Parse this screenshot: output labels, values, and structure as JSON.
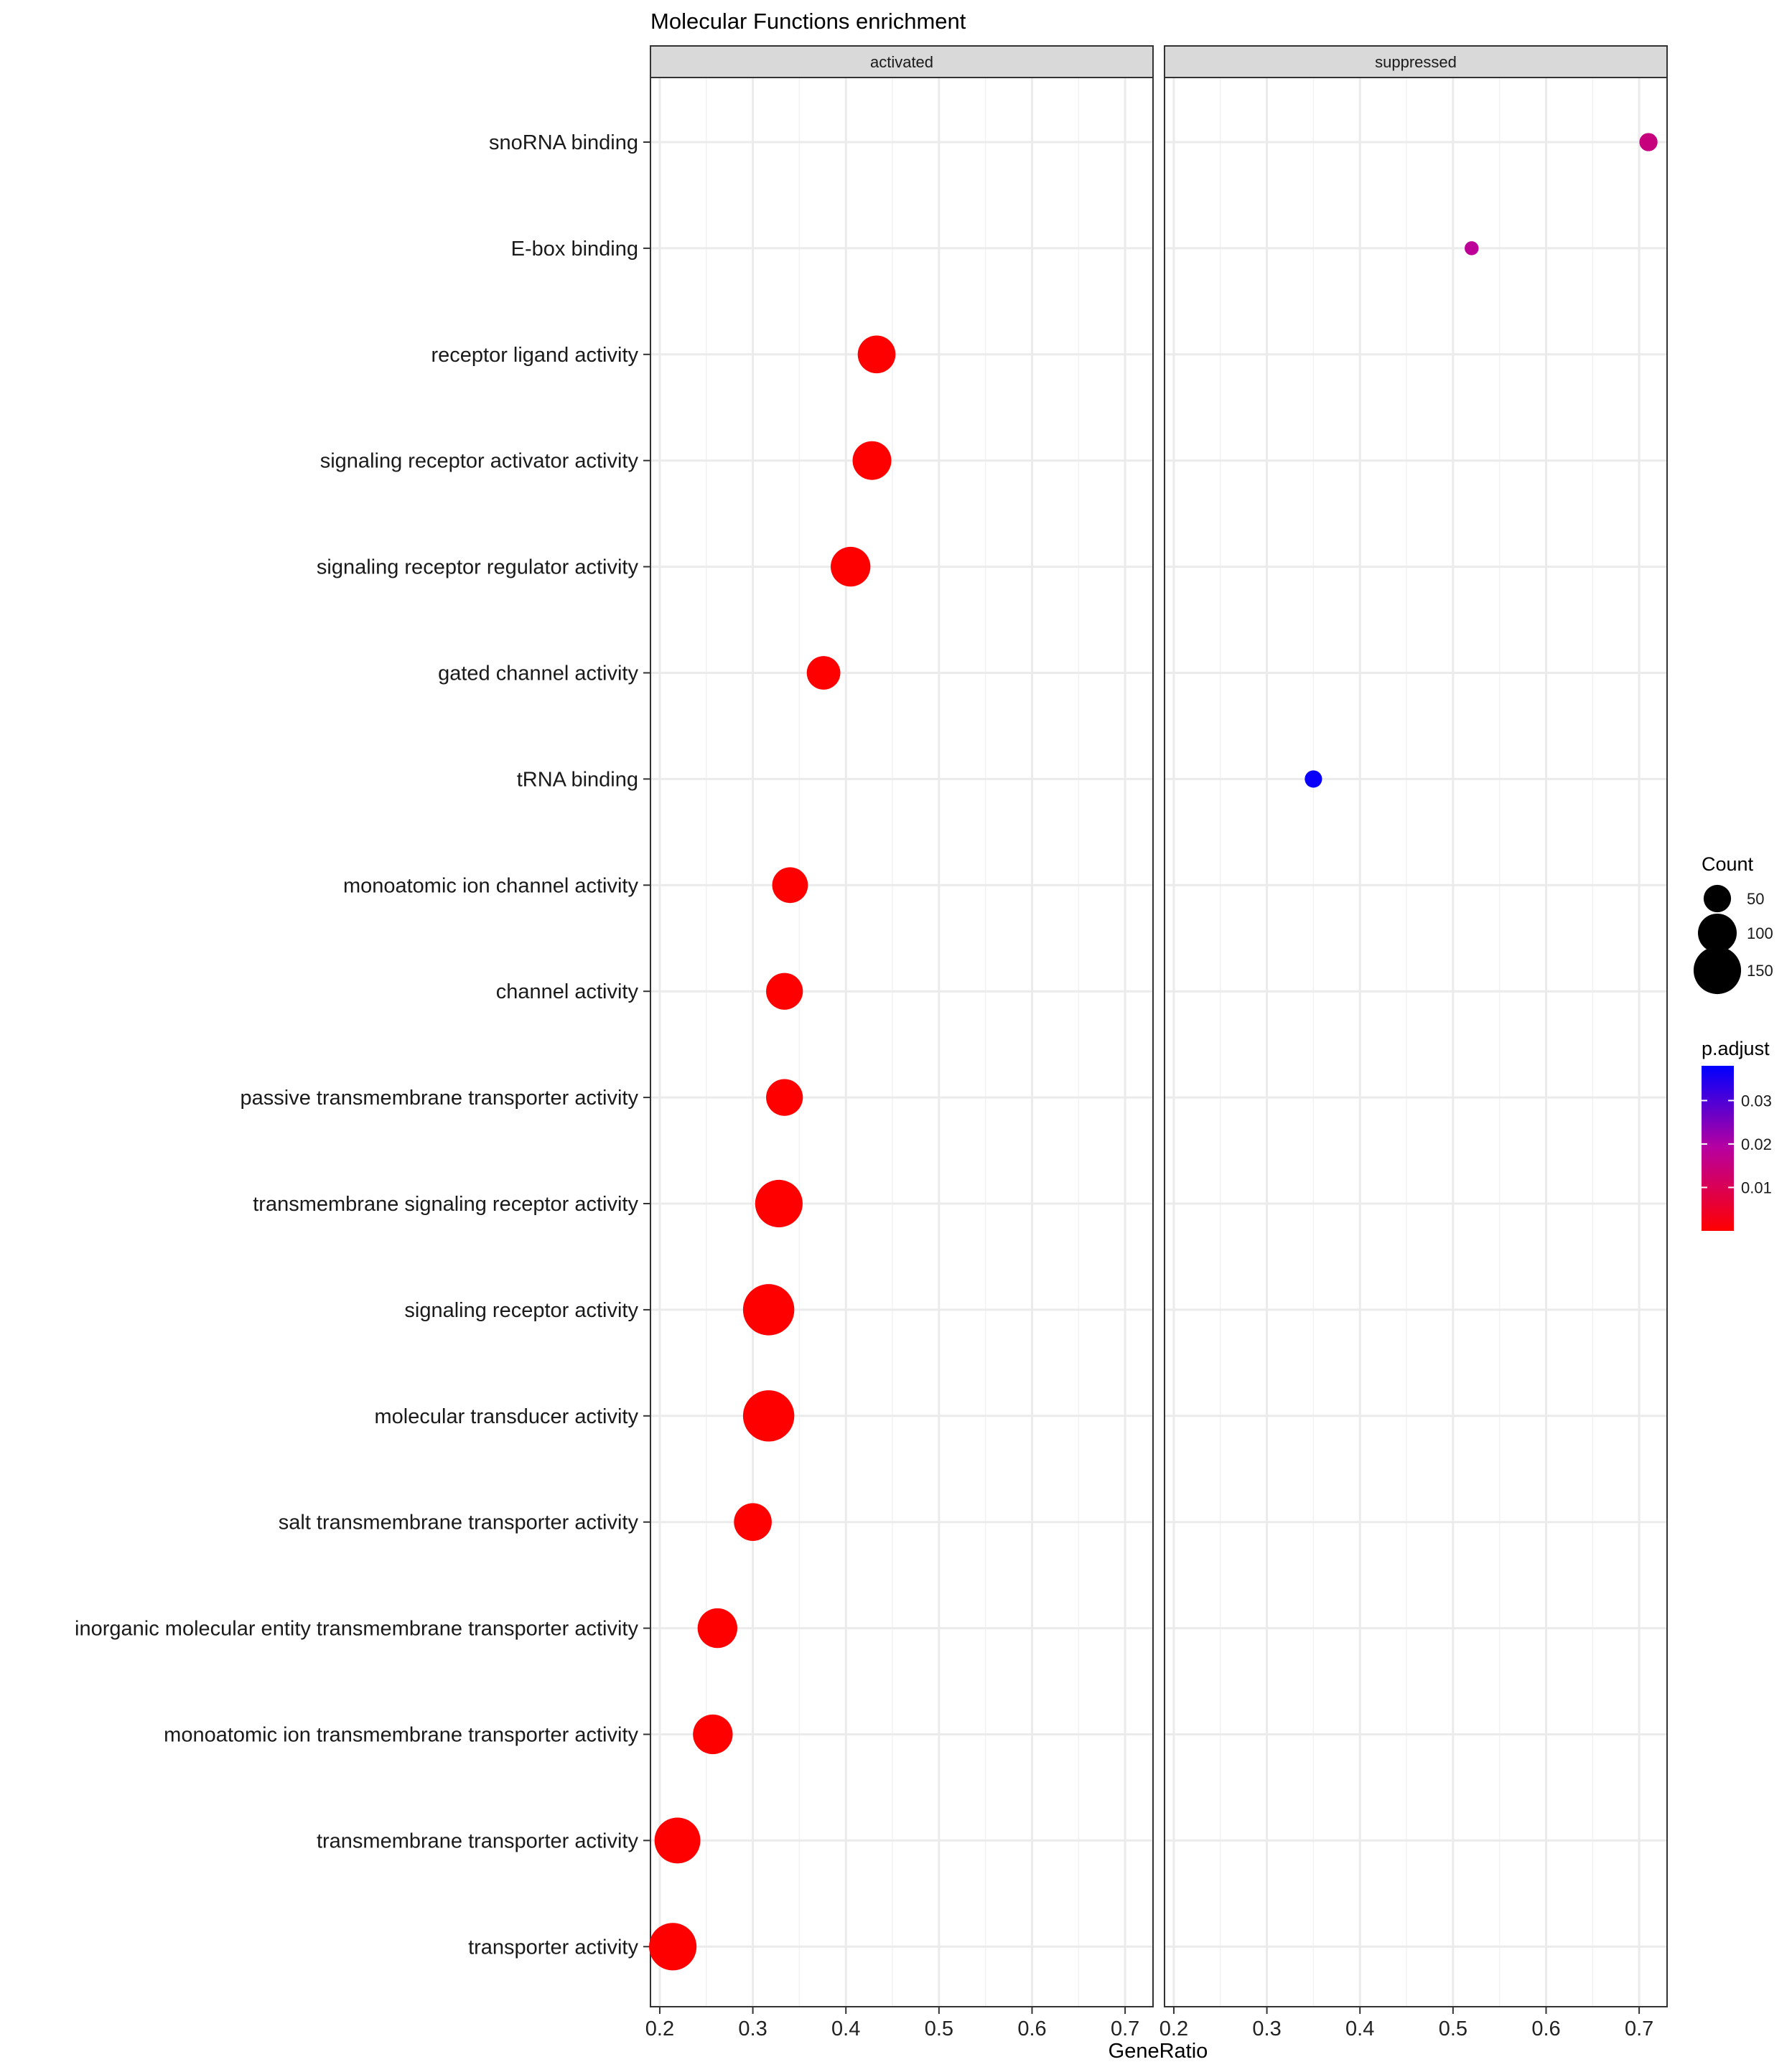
{
  "chart_data": {
    "type": "scatter",
    "title": "Molecular Functions enrichment",
    "xlabel": "GeneRatio",
    "ylabel": "",
    "facets": [
      "activated",
      "suppressed"
    ],
    "xlim": [
      0.19,
      0.73
    ],
    "xticks": [
      0.2,
      0.3,
      0.4,
      0.5,
      0.6,
      0.7
    ],
    "xtick_labels": [
      "0.2",
      "0.3",
      "0.4",
      "0.5",
      "0.6",
      "0.7"
    ],
    "categories": [
      "snoRNA binding",
      "E-box binding",
      "receptor ligand activity",
      "signaling receptor activator activity",
      "signaling receptor regulator activity",
      "gated channel activity",
      "tRNA binding",
      "monoatomic ion channel activity",
      "channel activity",
      "passive transmembrane transporter activity",
      "transmembrane signaling receptor activity",
      "signaling receptor activity",
      "molecular transducer activity",
      "salt transmembrane transporter activity",
      "inorganic molecular entity transmembrane transporter activity",
      "monoatomic ion transmembrane transporter activity",
      "transmembrane transporter activity",
      "transporter activity"
    ],
    "points": [
      {
        "facet": "suppressed",
        "category": "snoRNA binding",
        "gene_ratio": 0.71,
        "count": 22,
        "p_adjust": 0.015
      },
      {
        "facet": "suppressed",
        "category": "E-box binding",
        "gene_ratio": 0.52,
        "count": 13,
        "p_adjust": 0.018
      },
      {
        "facet": "activated",
        "category": "receptor ligand activity",
        "gene_ratio": 0.433,
        "count": 95,
        "p_adjust": 0.0
      },
      {
        "facet": "activated",
        "category": "signaling receptor activator activity",
        "gene_ratio": 0.428,
        "count": 100,
        "p_adjust": 0.0
      },
      {
        "facet": "activated",
        "category": "signaling receptor regulator activity",
        "gene_ratio": 0.405,
        "count": 105,
        "p_adjust": 0.0
      },
      {
        "facet": "activated",
        "category": "gated channel activity",
        "gene_ratio": 0.376,
        "count": 75,
        "p_adjust": 0.0
      },
      {
        "facet": "suppressed",
        "category": "tRNA binding",
        "gene_ratio": 0.35,
        "count": 20,
        "p_adjust": 0.037
      },
      {
        "facet": "activated",
        "category": "monoatomic ion channel activity",
        "gene_ratio": 0.34,
        "count": 85,
        "p_adjust": 0.0
      },
      {
        "facet": "activated",
        "category": "channel activity",
        "gene_ratio": 0.334,
        "count": 90,
        "p_adjust": 0.0
      },
      {
        "facet": "activated",
        "category": "passive transmembrane transporter activity",
        "gene_ratio": 0.334,
        "count": 90,
        "p_adjust": 0.0
      },
      {
        "facet": "activated",
        "category": "transmembrane signaling receptor activity",
        "gene_ratio": 0.328,
        "count": 150,
        "p_adjust": 0.0
      },
      {
        "facet": "activated",
        "category": "signaling receptor activity",
        "gene_ratio": 0.317,
        "count": 175,
        "p_adjust": 0.0
      },
      {
        "facet": "activated",
        "category": "molecular transducer activity",
        "gene_ratio": 0.317,
        "count": 175,
        "p_adjust": 0.0
      },
      {
        "facet": "activated",
        "category": "salt transmembrane transporter activity",
        "gene_ratio": 0.3,
        "count": 95,
        "p_adjust": 0.0
      },
      {
        "facet": "activated",
        "category": "inorganic molecular entity transmembrane transporter activity",
        "gene_ratio": 0.262,
        "count": 105,
        "p_adjust": 0.0
      },
      {
        "facet": "activated",
        "category": "monoatomic ion transmembrane transporter activity",
        "gene_ratio": 0.257,
        "count": 105,
        "p_adjust": 0.0
      },
      {
        "facet": "activated",
        "category": "transmembrane transporter activity",
        "gene_ratio": 0.219,
        "count": 140,
        "p_adjust": 0.0
      },
      {
        "facet": "activated",
        "category": "transporter activity",
        "gene_ratio": 0.214,
        "count": 150,
        "p_adjust": 0.0
      }
    ],
    "legend_count": {
      "title": "Count",
      "values": [
        50,
        100,
        150
      ],
      "labels": [
        "50",
        "100",
        "150"
      ]
    },
    "legend_padjust": {
      "title": "p.adjust",
      "range": [
        0.0,
        0.038
      ],
      "ticks": [
        0.01,
        0.02,
        0.03
      ],
      "tick_labels": [
        "0.01",
        "0.02",
        "0.03"
      ],
      "color_low": "#ff0000",
      "color_high": "#0000ff"
    },
    "legend_position": "right",
    "grid": true
  }
}
